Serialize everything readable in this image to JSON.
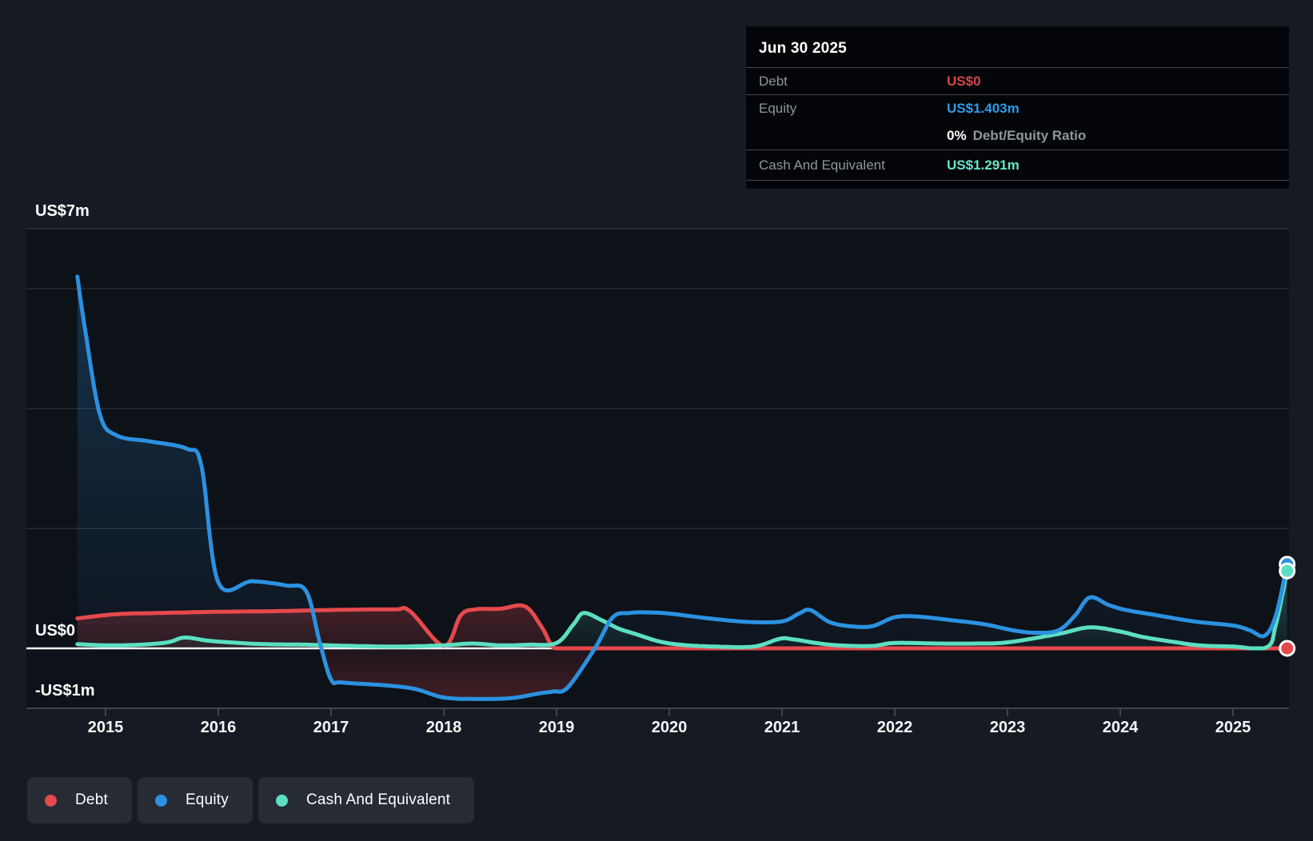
{
  "tooltip": {
    "date": "Jun 30 2025",
    "rows": [
      {
        "label": "Debt",
        "value": "US$0",
        "value_color": "#d6454a"
      },
      {
        "label": "Equity",
        "value": "US$1.403m",
        "value_color": "#2d9cec"
      },
      {
        "label": "Cash And Equivalent",
        "value": "US$1.291m",
        "value_color": "#68e8ca"
      }
    ],
    "ratio_value": "0%",
    "ratio_label": "Debt/Equity Ratio"
  },
  "y_axis": {
    "labels": [
      {
        "text": "US$7m",
        "value": 7
      },
      {
        "text": "US$0",
        "value": 0
      },
      {
        "text": "-US$1m",
        "value": -1
      }
    ]
  },
  "x_axis": {
    "ticks": [
      "2015",
      "2016",
      "2017",
      "2018",
      "2019",
      "2020",
      "2021",
      "2022",
      "2023",
      "2024",
      "2025"
    ]
  },
  "legend": [
    {
      "label": "Debt",
      "color": "#e5494c"
    },
    {
      "label": "Equity",
      "color": "#2b91e0"
    },
    {
      "label": "Cash And Equivalent",
      "color": "#5cdfc1"
    }
  ],
  "colors": {
    "page_bg": "#161b23",
    "plot_bg": "#0d1118",
    "gridline": "#262c36",
    "boundary_line": "#3e454f",
    "zero_line": "#eef1f4",
    "tick_label": "#f5f6f7",
    "debt": "#e5494c",
    "equity": "#2b91e0",
    "cash": "#5cdfc1"
  },
  "chart_data": {
    "type": "area",
    "title": "Debt to Equity History",
    "x_range": [
      2014.75,
      2025.48
    ],
    "ylim": [
      -1,
      7
    ],
    "y_unit": "US$ millions",
    "grid_on": true,
    "gridline_values": [
      6,
      4,
      2
    ],
    "zero_value": 0,
    "top_boundary_value": 7,
    "bottom_boundary_value": -1,
    "legend_position": "bottom-left",
    "series": [
      {
        "name": "Debt",
        "color": "#e5494c",
        "points": [
          [
            2014.75,
            0.5
          ],
          [
            2015.1,
            0.57
          ],
          [
            2015.5,
            0.59
          ],
          [
            2016.0,
            0.61
          ],
          [
            2016.5,
            0.62
          ],
          [
            2017.0,
            0.64
          ],
          [
            2017.55,
            0.65
          ],
          [
            2017.7,
            0.62
          ],
          [
            2018.0,
            0.04
          ],
          [
            2018.15,
            0.55
          ],
          [
            2018.28,
            0.65
          ],
          [
            2018.5,
            0.66
          ],
          [
            2018.72,
            0.7
          ],
          [
            2018.87,
            0.35
          ],
          [
            2018.97,
            0.02
          ],
          [
            2019.1,
            0.0
          ],
          [
            2019.5,
            0.0
          ],
          [
            2020.0,
            0.0
          ],
          [
            2021.0,
            0.0
          ],
          [
            2022.0,
            0.0
          ],
          [
            2023.0,
            0.0
          ],
          [
            2024.0,
            0.0
          ],
          [
            2025.0,
            0.0
          ],
          [
            2025.48,
            0.0
          ]
        ]
      },
      {
        "name": "Equity",
        "color": "#2b91e0",
        "points": [
          [
            2014.75,
            6.2
          ],
          [
            2014.82,
            5.3
          ],
          [
            2014.95,
            3.9
          ],
          [
            2015.1,
            3.55
          ],
          [
            2015.4,
            3.45
          ],
          [
            2015.72,
            3.33
          ],
          [
            2015.85,
            3.05
          ],
          [
            2016.0,
            1.1
          ],
          [
            2016.3,
            1.12
          ],
          [
            2016.6,
            1.05
          ],
          [
            2016.78,
            0.95
          ],
          [
            2016.9,
            0.1
          ],
          [
            2017.0,
            -0.52
          ],
          [
            2017.1,
            -0.57
          ],
          [
            2017.5,
            -0.62
          ],
          [
            2017.75,
            -0.68
          ],
          [
            2018.0,
            -0.82
          ],
          [
            2018.3,
            -0.845
          ],
          [
            2018.6,
            -0.83
          ],
          [
            2018.85,
            -0.75
          ],
          [
            2018.97,
            -0.72
          ],
          [
            2019.1,
            -0.65
          ],
          [
            2019.34,
            0.0
          ],
          [
            2019.5,
            0.52
          ],
          [
            2019.65,
            0.59
          ],
          [
            2019.8,
            0.6
          ],
          [
            2020.0,
            0.58
          ],
          [
            2020.35,
            0.5
          ],
          [
            2020.7,
            0.44
          ],
          [
            2021.0,
            0.45
          ],
          [
            2021.15,
            0.58
          ],
          [
            2021.25,
            0.64
          ],
          [
            2021.42,
            0.44
          ],
          [
            2021.6,
            0.37
          ],
          [
            2021.8,
            0.37
          ],
          [
            2022.0,
            0.52
          ],
          [
            2022.2,
            0.53
          ],
          [
            2022.5,
            0.47
          ],
          [
            2022.8,
            0.4
          ],
          [
            2023.05,
            0.3
          ],
          [
            2023.25,
            0.26
          ],
          [
            2023.45,
            0.3
          ],
          [
            2023.6,
            0.55
          ],
          [
            2023.73,
            0.85
          ],
          [
            2023.9,
            0.72
          ],
          [
            2024.05,
            0.64
          ],
          [
            2024.3,
            0.56
          ],
          [
            2024.65,
            0.45
          ],
          [
            2025.0,
            0.38
          ],
          [
            2025.15,
            0.3
          ],
          [
            2025.28,
            0.21
          ],
          [
            2025.38,
            0.55
          ],
          [
            2025.48,
            1.403
          ]
        ]
      },
      {
        "name": "Cash And Equivalent",
        "color": "#5cdfc1",
        "points": [
          [
            2014.75,
            0.07
          ],
          [
            2015.0,
            0.05
          ],
          [
            2015.3,
            0.06
          ],
          [
            2015.55,
            0.1
          ],
          [
            2015.7,
            0.18
          ],
          [
            2015.9,
            0.13
          ],
          [
            2016.1,
            0.1
          ],
          [
            2016.4,
            0.07
          ],
          [
            2016.8,
            0.06
          ],
          [
            2017.2,
            0.04
          ],
          [
            2017.6,
            0.03
          ],
          [
            2018.0,
            0.05
          ],
          [
            2018.25,
            0.08
          ],
          [
            2018.5,
            0.05
          ],
          [
            2018.75,
            0.06
          ],
          [
            2019.0,
            0.09
          ],
          [
            2019.15,
            0.4
          ],
          [
            2019.24,
            0.59
          ],
          [
            2019.4,
            0.47
          ],
          [
            2019.55,
            0.33
          ],
          [
            2019.7,
            0.24
          ],
          [
            2019.9,
            0.12
          ],
          [
            2020.1,
            0.06
          ],
          [
            2020.4,
            0.03
          ],
          [
            2020.75,
            0.03
          ],
          [
            2020.98,
            0.16
          ],
          [
            2021.1,
            0.15
          ],
          [
            2021.3,
            0.09
          ],
          [
            2021.5,
            0.05
          ],
          [
            2021.8,
            0.04
          ],
          [
            2022.0,
            0.09
          ],
          [
            2022.4,
            0.08
          ],
          [
            2022.7,
            0.08
          ],
          [
            2023.0,
            0.1
          ],
          [
            2023.45,
            0.24
          ],
          [
            2023.73,
            0.35
          ],
          [
            2024.0,
            0.28
          ],
          [
            2024.2,
            0.19
          ],
          [
            2024.5,
            0.1
          ],
          [
            2024.7,
            0.05
          ],
          [
            2025.0,
            0.03
          ],
          [
            2025.3,
            0.02
          ],
          [
            2025.38,
            0.4
          ],
          [
            2025.48,
            1.291
          ]
        ]
      }
    ],
    "end_markers": [
      {
        "series": "Equity",
        "x": 2025.48,
        "value": 1.403
      },
      {
        "series": "Cash And Equivalent",
        "x": 2025.48,
        "value": 1.291
      },
      {
        "series": "Debt",
        "x": 2025.48,
        "value": 0
      }
    ]
  }
}
